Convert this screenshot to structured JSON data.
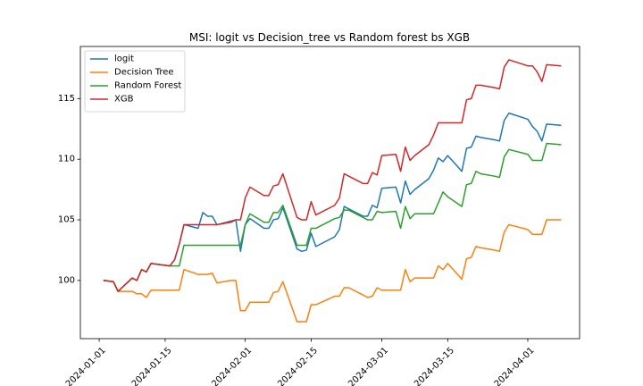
{
  "chart_data": {
    "type": "line",
    "title": "MSI: logit vs Decision_tree vs Random forest bs XGB",
    "xlabel": "",
    "ylabel": "",
    "xlim": [
      "2023-12-28",
      "2024-04-12"
    ],
    "ylim": [
      95.2,
      119.3
    ],
    "x_ticks": [
      "2024-01-01",
      "2024-01-15",
      "2024-02-01",
      "2024-02-15",
      "2024-03-01",
      "2024-03-15",
      "2024-04-01"
    ],
    "y_ticks": [
      100,
      105,
      110,
      115
    ],
    "grid": false,
    "legend_position": "top-left",
    "series": [
      {
        "name": "logit",
        "color": "#1f77b4",
        "points": [
          [
            "2024-01-02",
            100.0
          ],
          [
            "2024-01-04",
            99.9
          ],
          [
            "2024-01-05",
            99.1
          ],
          [
            "2024-01-08",
            100.2
          ],
          [
            "2024-01-09",
            100.0
          ],
          [
            "2024-01-10",
            100.9
          ],
          [
            "2024-01-11",
            100.7
          ],
          [
            "2024-01-12",
            101.4
          ],
          [
            "2024-01-16",
            101.2
          ],
          [
            "2024-01-17",
            101.7
          ],
          [
            "2024-01-18",
            103.0
          ],
          [
            "2024-01-19",
            104.6
          ],
          [
            "2024-01-22",
            104.3
          ],
          [
            "2024-01-23",
            105.6
          ],
          [
            "2024-01-24",
            105.3
          ],
          [
            "2024-01-25",
            105.3
          ],
          [
            "2024-01-26",
            104.6
          ],
          [
            "2024-01-29",
            104.9
          ],
          [
            "2024-01-30",
            105.0
          ],
          [
            "2024-01-31",
            102.4
          ],
          [
            "2024-02-01",
            104.6
          ],
          [
            "2024-02-02",
            105.1
          ],
          [
            "2024-02-05",
            104.3
          ],
          [
            "2024-02-06",
            104.3
          ],
          [
            "2024-02-07",
            105.0
          ],
          [
            "2024-02-08",
            105.1
          ],
          [
            "2024-02-09",
            106.0
          ],
          [
            "2024-02-12",
            102.6
          ],
          [
            "2024-02-13",
            102.4
          ],
          [
            "2024-02-14",
            102.5
          ],
          [
            "2024-02-15",
            103.9
          ],
          [
            "2024-02-16",
            102.8
          ],
          [
            "2024-02-20",
            103.6
          ],
          [
            "2024-02-21",
            104.2
          ],
          [
            "2024-02-22",
            106.1
          ],
          [
            "2024-02-23",
            105.9
          ],
          [
            "2024-02-26",
            105.3
          ],
          [
            "2024-02-27",
            105.3
          ],
          [
            "2024-02-28",
            106.2
          ],
          [
            "2024-02-29",
            106.0
          ],
          [
            "2024-03-01",
            107.6
          ],
          [
            "2024-03-04",
            107.7
          ],
          [
            "2024-03-05",
            106.4
          ],
          [
            "2024-03-06",
            108.2
          ],
          [
            "2024-03-07",
            107.1
          ],
          [
            "2024-03-08",
            107.5
          ],
          [
            "2024-03-11",
            108.4
          ],
          [
            "2024-03-12",
            109.1
          ],
          [
            "2024-03-13",
            110.1
          ],
          [
            "2024-03-14",
            109.8
          ],
          [
            "2024-03-15",
            110.3
          ],
          [
            "2024-03-18",
            109.0
          ],
          [
            "2024-03-19",
            110.9
          ],
          [
            "2024-03-20",
            111.0
          ],
          [
            "2024-03-21",
            111.9
          ],
          [
            "2024-03-22",
            111.8
          ],
          [
            "2024-03-25",
            111.6
          ],
          [
            "2024-03-26",
            111.5
          ],
          [
            "2024-03-27",
            113.2
          ],
          [
            "2024-03-28",
            113.8
          ],
          [
            "2024-04-01",
            113.3
          ],
          [
            "2024-04-02",
            112.7
          ],
          [
            "2024-04-03",
            112.3
          ],
          [
            "2024-04-04",
            111.5
          ],
          [
            "2024-04-05",
            112.9
          ],
          [
            "2024-04-08",
            112.8
          ]
        ]
      },
      {
        "name": "Decision Tree",
        "color": "#ff7f0e",
        "points": [
          [
            "2024-01-02",
            100.0
          ],
          [
            "2024-01-04",
            99.9
          ],
          [
            "2024-01-05",
            99.1
          ],
          [
            "2024-01-08",
            99.1
          ],
          [
            "2024-01-09",
            98.9
          ],
          [
            "2024-01-10",
            98.9
          ],
          [
            "2024-01-11",
            98.6
          ],
          [
            "2024-01-12",
            99.2
          ],
          [
            "2024-01-16",
            99.2
          ],
          [
            "2024-01-17",
            99.2
          ],
          [
            "2024-01-18",
            99.2
          ],
          [
            "2024-01-19",
            100.9
          ],
          [
            "2024-01-22",
            100.5
          ],
          [
            "2024-01-23",
            100.5
          ],
          [
            "2024-01-24",
            100.5
          ],
          [
            "2024-01-25",
            100.6
          ],
          [
            "2024-01-26",
            99.8
          ],
          [
            "2024-01-29",
            100.0
          ],
          [
            "2024-01-30",
            100.0
          ],
          [
            "2024-01-31",
            97.5
          ],
          [
            "2024-02-01",
            97.5
          ],
          [
            "2024-02-02",
            98.2
          ],
          [
            "2024-02-05",
            98.2
          ],
          [
            "2024-02-06",
            98.2
          ],
          [
            "2024-02-07",
            99.0
          ],
          [
            "2024-02-08",
            99.1
          ],
          [
            "2024-02-09",
            99.9
          ],
          [
            "2024-02-12",
            96.6
          ],
          [
            "2024-02-13",
            96.6
          ],
          [
            "2024-02-14",
            96.6
          ],
          [
            "2024-02-15",
            98.0
          ],
          [
            "2024-02-16",
            98.0
          ],
          [
            "2024-02-20",
            98.7
          ],
          [
            "2024-02-21",
            98.7
          ],
          [
            "2024-02-22",
            99.4
          ],
          [
            "2024-02-23",
            99.4
          ],
          [
            "2024-02-26",
            98.8
          ],
          [
            "2024-02-27",
            98.6
          ],
          [
            "2024-02-28",
            98.7
          ],
          [
            "2024-02-29",
            99.4
          ],
          [
            "2024-03-01",
            99.2
          ],
          [
            "2024-03-04",
            99.2
          ],
          [
            "2024-03-05",
            99.2
          ],
          [
            "2024-03-06",
            100.9
          ],
          [
            "2024-03-07",
            99.9
          ],
          [
            "2024-03-08",
            100.2
          ],
          [
            "2024-03-11",
            100.2
          ],
          [
            "2024-03-12",
            100.2
          ],
          [
            "2024-03-13",
            101.2
          ],
          [
            "2024-03-14",
            100.9
          ],
          [
            "2024-03-15",
            101.4
          ],
          [
            "2024-03-18",
            100.1
          ],
          [
            "2024-03-19",
            101.8
          ],
          [
            "2024-03-20",
            101.9
          ],
          [
            "2024-03-21",
            102.8
          ],
          [
            "2024-03-22",
            102.7
          ],
          [
            "2024-03-25",
            102.5
          ],
          [
            "2024-03-26",
            102.4
          ],
          [
            "2024-03-27",
            104.0
          ],
          [
            "2024-03-28",
            104.6
          ],
          [
            "2024-04-01",
            104.2
          ],
          [
            "2024-04-02",
            103.8
          ],
          [
            "2024-04-03",
            103.8
          ],
          [
            "2024-04-04",
            103.8
          ],
          [
            "2024-04-05",
            105.0
          ],
          [
            "2024-04-08",
            105.0
          ]
        ]
      },
      {
        "name": "Random Forest",
        "color": "#2ca02c",
        "points": [
          [
            "2024-01-02",
            100.0
          ],
          [
            "2024-01-04",
            99.9
          ],
          [
            "2024-01-05",
            99.1
          ],
          [
            "2024-01-08",
            100.2
          ],
          [
            "2024-01-09",
            100.0
          ],
          [
            "2024-01-10",
            100.9
          ],
          [
            "2024-01-11",
            100.7
          ],
          [
            "2024-01-12",
            101.4
          ],
          [
            "2024-01-16",
            101.2
          ],
          [
            "2024-01-17",
            101.2
          ],
          [
            "2024-01-18",
            101.2
          ],
          [
            "2024-01-19",
            102.9
          ],
          [
            "2024-01-22",
            102.9
          ],
          [
            "2024-01-23",
            102.9
          ],
          [
            "2024-01-24",
            102.9
          ],
          [
            "2024-01-25",
            102.9
          ],
          [
            "2024-01-26",
            102.9
          ],
          [
            "2024-01-29",
            102.9
          ],
          [
            "2024-01-30",
            102.9
          ],
          [
            "2024-01-31",
            102.9
          ],
          [
            "2024-02-01",
            104.6
          ],
          [
            "2024-02-02",
            105.5
          ],
          [
            "2024-02-05",
            104.8
          ],
          [
            "2024-02-06",
            104.8
          ],
          [
            "2024-02-07",
            105.6
          ],
          [
            "2024-02-08",
            105.6
          ],
          [
            "2024-02-09",
            106.2
          ],
          [
            "2024-02-12",
            102.9
          ],
          [
            "2024-02-13",
            102.9
          ],
          [
            "2024-02-14",
            102.9
          ],
          [
            "2024-02-15",
            104.3
          ],
          [
            "2024-02-16",
            104.3
          ],
          [
            "2024-02-20",
            105.1
          ],
          [
            "2024-02-21",
            105.2
          ],
          [
            "2024-02-22",
            105.8
          ],
          [
            "2024-02-23",
            105.8
          ],
          [
            "2024-02-26",
            105.2
          ],
          [
            "2024-02-27",
            105.0
          ],
          [
            "2024-02-28",
            105.0
          ],
          [
            "2024-02-29",
            105.7
          ],
          [
            "2024-03-01",
            105.6
          ],
          [
            "2024-03-04",
            105.7
          ],
          [
            "2024-03-05",
            104.3
          ],
          [
            "2024-03-06",
            106.1
          ],
          [
            "2024-03-07",
            105.1
          ],
          [
            "2024-03-08",
            105.5
          ],
          [
            "2024-03-11",
            105.5
          ],
          [
            "2024-03-12",
            105.5
          ],
          [
            "2024-03-13",
            106.4
          ],
          [
            "2024-03-14",
            107.3
          ],
          [
            "2024-03-15",
            106.9
          ],
          [
            "2024-03-18",
            106.1
          ],
          [
            "2024-03-19",
            107.9
          ],
          [
            "2024-03-20",
            108.0
          ],
          [
            "2024-03-21",
            109.0
          ],
          [
            "2024-03-22",
            108.8
          ],
          [
            "2024-03-25",
            108.6
          ],
          [
            "2024-03-26",
            108.5
          ],
          [
            "2024-03-27",
            110.2
          ],
          [
            "2024-03-28",
            110.8
          ],
          [
            "2024-04-01",
            110.4
          ],
          [
            "2024-04-02",
            109.9
          ],
          [
            "2024-04-03",
            109.9
          ],
          [
            "2024-04-04",
            109.9
          ],
          [
            "2024-04-05",
            111.3
          ],
          [
            "2024-04-08",
            111.2
          ]
        ]
      },
      {
        "name": "XGB",
        "color": "#d62728",
        "points": [
          [
            "2024-01-02",
            100.0
          ],
          [
            "2024-01-04",
            99.9
          ],
          [
            "2024-01-05",
            99.1
          ],
          [
            "2024-01-08",
            100.2
          ],
          [
            "2024-01-09",
            100.0
          ],
          [
            "2024-01-10",
            100.9
          ],
          [
            "2024-01-11",
            100.7
          ],
          [
            "2024-01-12",
            101.4
          ],
          [
            "2024-01-16",
            101.2
          ],
          [
            "2024-01-17",
            101.7
          ],
          [
            "2024-01-18",
            103.0
          ],
          [
            "2024-01-19",
            104.6
          ],
          [
            "2024-01-22",
            104.6
          ],
          [
            "2024-01-23",
            104.6
          ],
          [
            "2024-01-24",
            104.6
          ],
          [
            "2024-01-25",
            104.6
          ],
          [
            "2024-01-26",
            104.6
          ],
          [
            "2024-01-29",
            104.8
          ],
          [
            "2024-01-30",
            105.0
          ],
          [
            "2024-01-31",
            105.0
          ],
          [
            "2024-02-01",
            106.8
          ],
          [
            "2024-02-02",
            107.7
          ],
          [
            "2024-02-05",
            107.0
          ],
          [
            "2024-02-06",
            107.0
          ],
          [
            "2024-02-07",
            107.8
          ],
          [
            "2024-02-08",
            107.9
          ],
          [
            "2024-02-09",
            108.8
          ],
          [
            "2024-02-12",
            105.2
          ],
          [
            "2024-02-13",
            105.0
          ],
          [
            "2024-02-14",
            105.0
          ],
          [
            "2024-02-15",
            106.5
          ],
          [
            "2024-02-16",
            105.4
          ],
          [
            "2024-02-20",
            106.2
          ],
          [
            "2024-02-21",
            106.8
          ],
          [
            "2024-02-22",
            108.8
          ],
          [
            "2024-02-23",
            108.6
          ],
          [
            "2024-02-26",
            108.0
          ],
          [
            "2024-02-27",
            108.0
          ],
          [
            "2024-02-28",
            108.9
          ],
          [
            "2024-02-29",
            108.7
          ],
          [
            "2024-03-01",
            110.3
          ],
          [
            "2024-03-04",
            110.4
          ],
          [
            "2024-03-05",
            109.0
          ],
          [
            "2024-03-06",
            111.0
          ],
          [
            "2024-03-07",
            109.9
          ],
          [
            "2024-03-08",
            110.3
          ],
          [
            "2024-03-11",
            111.2
          ],
          [
            "2024-03-12",
            112.0
          ],
          [
            "2024-03-13",
            113.0
          ],
          [
            "2024-03-14",
            113.0
          ],
          [
            "2024-03-15",
            113.0
          ],
          [
            "2024-03-18",
            113.0
          ],
          [
            "2024-03-19",
            114.9
          ],
          [
            "2024-03-20",
            115.0
          ],
          [
            "2024-03-21",
            116.1
          ],
          [
            "2024-03-22",
            116.1
          ],
          [
            "2024-03-25",
            115.9
          ],
          [
            "2024-03-26",
            115.8
          ],
          [
            "2024-03-27",
            117.6
          ],
          [
            "2024-03-28",
            118.2
          ],
          [
            "2024-04-01",
            117.7
          ],
          [
            "2024-04-02",
            117.7
          ],
          [
            "2024-04-03",
            117.2
          ],
          [
            "2024-04-04",
            116.4
          ],
          [
            "2024-04-05",
            117.8
          ],
          [
            "2024-04-08",
            117.7
          ]
        ]
      }
    ]
  }
}
